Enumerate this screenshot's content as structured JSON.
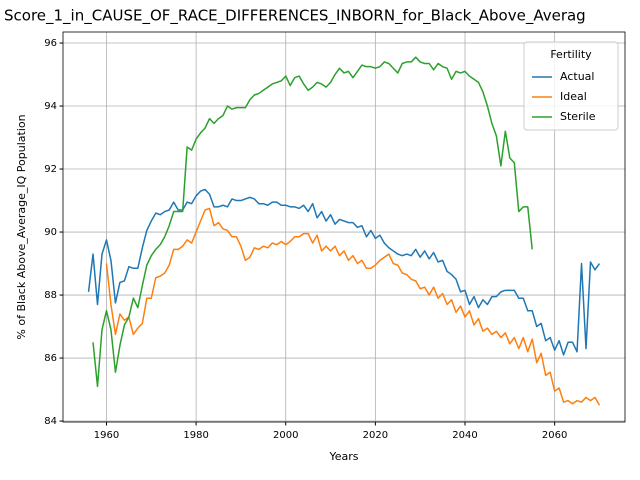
{
  "chart_data": {
    "type": "line",
    "title": "Score_1_in_CAUSE_OF_RACE_DIFFERENCES_INBORN_for_Black_Above_Averag",
    "x_label": "Years",
    "y_label": "% of Black Above_Average_IQ Population",
    "x": [
      1956,
      1957,
      1958,
      1959,
      1960,
      1961,
      1962,
      1963,
      1964,
      1965,
      1966,
      1967,
      1968,
      1969,
      1970,
      1971,
      1972,
      1973,
      1974,
      1975,
      1976,
      1977,
      1978,
      1979,
      1980,
      1981,
      1982,
      1983,
      1984,
      1985,
      1986,
      1987,
      1988,
      1989,
      1990,
      1991,
      1992,
      1993,
      1994,
      1995,
      1996,
      1997,
      1998,
      1999,
      2000,
      2001,
      2002,
      2003,
      2004,
      2005,
      2006,
      2007,
      2008,
      2009,
      2010,
      2011,
      2012,
      2013,
      2014,
      2015,
      2016,
      2017,
      2018,
      2019,
      2020,
      2021,
      2022,
      2023,
      2024,
      2025,
      2026,
      2027,
      2028,
      2029,
      2030,
      2031,
      2032,
      2033,
      2034,
      2035,
      2036,
      2037,
      2038,
      2039,
      2040,
      2041,
      2042,
      2043,
      2044,
      2045,
      2046,
      2047,
      2048,
      2049,
      2050,
      2051,
      2052,
      2053,
      2054,
      2055,
      2056,
      2057,
      2058,
      2059,
      2060,
      2061,
      2062,
      2063,
      2064,
      2065,
      2066,
      2067,
      2068,
      2069,
      2070
    ],
    "series": [
      {
        "name": "Actual",
        "color": "#1f77b4",
        "values": [
          88.1,
          89.3,
          87.7,
          89.3,
          89.75,
          89.1,
          87.75,
          88.4,
          88.45,
          88.9,
          88.85,
          88.85,
          89.5,
          90.05,
          90.35,
          90.6,
          90.55,
          90.65,
          90.7,
          90.95,
          90.7,
          90.7,
          90.95,
          90.9,
          91.15,
          91.3,
          91.35,
          91.2,
          90.8,
          90.8,
          90.85,
          90.8,
          91.05,
          91.0,
          91.0,
          91.05,
          91.1,
          91.05,
          90.9,
          90.9,
          90.85,
          90.95,
          90.95,
          90.85,
          90.85,
          90.8,
          90.8,
          90.75,
          90.85,
          90.65,
          90.9,
          90.45,
          90.65,
          90.35,
          90.55,
          90.25,
          90.4,
          90.35,
          90.3,
          90.3,
          90.15,
          90.2,
          89.85,
          90.05,
          89.8,
          89.9,
          89.65,
          89.5,
          89.4,
          89.3,
          89.25,
          89.3,
          89.25,
          89.45,
          89.2,
          89.4,
          89.15,
          89.35,
          89.05,
          89.1,
          88.75,
          88.65,
          88.5,
          88.1,
          88.15,
          87.7,
          87.95,
          87.6,
          87.85,
          87.7,
          87.95,
          87.95,
          88.1,
          88.15,
          88.15,
          88.15,
          87.9,
          87.9,
          87.5,
          87.5,
          87.0,
          87.1,
          86.55,
          86.65,
          86.25,
          86.55,
          86.1,
          86.5,
          86.5,
          86.2,
          89.0,
          86.3,
          89.05,
          88.8,
          89.0
        ]
      },
      {
        "name": "Ideal",
        "color": "#ff7f0e",
        "values": [
          null,
          null,
          null,
          null,
          89.0,
          87.7,
          86.75,
          87.4,
          87.2,
          87.3,
          86.75,
          86.95,
          87.1,
          87.9,
          87.9,
          88.55,
          88.6,
          88.7,
          88.95,
          89.45,
          89.45,
          89.55,
          89.75,
          89.65,
          90.0,
          90.35,
          90.7,
          90.75,
          90.2,
          90.3,
          90.1,
          90.05,
          89.85,
          89.85,
          89.55,
          89.1,
          89.2,
          89.5,
          89.45,
          89.55,
          89.5,
          89.65,
          89.6,
          89.7,
          89.6,
          89.7,
          89.85,
          89.85,
          89.95,
          89.95,
          89.65,
          89.9,
          89.4,
          89.55,
          89.4,
          89.55,
          89.25,
          89.4,
          89.1,
          89.25,
          89.0,
          89.1,
          88.85,
          88.85,
          88.95,
          89.1,
          89.2,
          89.3,
          89.0,
          88.95,
          88.7,
          88.65,
          88.5,
          88.45,
          88.2,
          88.25,
          88.0,
          88.25,
          87.9,
          88.05,
          87.7,
          87.85,
          87.45,
          87.65,
          87.3,
          87.5,
          87.05,
          87.25,
          86.85,
          86.95,
          86.75,
          86.85,
          86.65,
          86.8,
          86.45,
          86.65,
          86.3,
          86.65,
          86.2,
          86.6,
          85.85,
          86.15,
          85.45,
          85.55,
          84.95,
          85.05,
          84.6,
          84.65,
          84.55,
          84.65,
          84.6,
          84.75,
          84.65,
          84.75,
          84.5
        ]
      },
      {
        "name": "Sterile",
        "color": "#2ca02c",
        "values": [
          null,
          86.5,
          85.1,
          86.9,
          87.5,
          86.9,
          85.55,
          86.4,
          87.05,
          87.3,
          87.9,
          87.6,
          88.3,
          88.95,
          89.25,
          89.45,
          89.6,
          89.85,
          90.2,
          90.65,
          90.65,
          90.65,
          92.7,
          92.6,
          92.95,
          93.15,
          93.3,
          93.6,
          93.45,
          93.6,
          93.7,
          94.0,
          93.9,
          93.95,
          93.95,
          93.95,
          94.2,
          94.35,
          94.4,
          94.5,
          94.6,
          94.7,
          94.75,
          94.8,
          94.95,
          94.65,
          94.9,
          94.95,
          94.7,
          94.5,
          94.6,
          94.75,
          94.7,
          94.6,
          94.75,
          95.0,
          95.2,
          95.05,
          95.1,
          94.9,
          95.1,
          95.3,
          95.25,
          95.25,
          95.2,
          95.25,
          95.4,
          95.35,
          95.2,
          95.05,
          95.35,
          95.4,
          95.4,
          95.55,
          95.4,
          95.35,
          95.35,
          95.15,
          95.35,
          95.25,
          95.2,
          94.85,
          95.1,
          95.05,
          95.1,
          94.95,
          94.85,
          94.75,
          94.45,
          94.0,
          93.45,
          93.05,
          92.1,
          93.2,
          92.35,
          92.2,
          90.65,
          90.8,
          90.8,
          89.45,
          null,
          null,
          null,
          null,
          null,
          null,
          null,
          null,
          null,
          null,
          null,
          null,
          null,
          null,
          null
        ]
      }
    ],
    "xlim": [
      1950.3,
      2075.7
    ],
    "ylim": [
      83.97,
      96.35
    ],
    "xticks": [
      1960,
      1980,
      2000,
      2020,
      2040,
      2060
    ],
    "yticks": [
      84,
      86,
      88,
      90,
      92,
      94,
      96
    ],
    "grid": true,
    "legend_title": "Fertility",
    "legend_position": "upper right"
  }
}
